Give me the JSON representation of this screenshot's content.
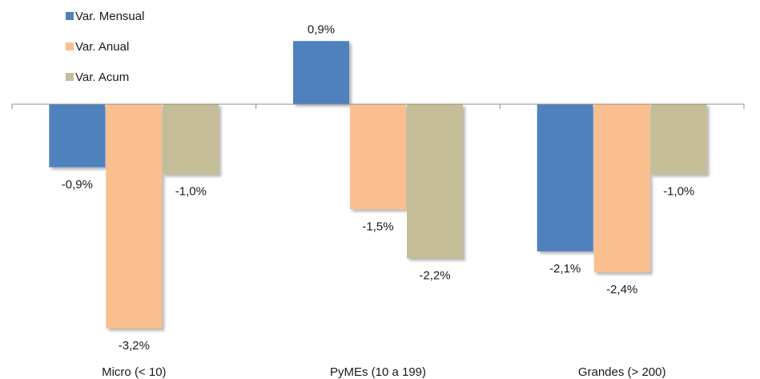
{
  "chart_data": {
    "type": "bar",
    "categories": [
      "Micro (< 10)",
      "PyMEs (10 a 199)",
      "Grandes (> 200)"
    ],
    "series": [
      {
        "name": "Var. Mensual",
        "color": "#4F81BD",
        "values": [
          -0.9,
          0.9,
          -2.1
        ],
        "labels": [
          "-0,9%",
          "0,9%",
          "-2,1%"
        ]
      },
      {
        "name": "Var. Anual",
        "color": "#FABF8F",
        "values": [
          -3.2,
          -1.5,
          -2.4
        ],
        "labels": [
          "-3,2%",
          "-1,5%",
          "-2,4%"
        ]
      },
      {
        "name": "Var. Acum",
        "color": "#C4BD97",
        "values": [
          -1.0,
          -2.2,
          -1.0
        ],
        "labels": [
          "-1,0%",
          "-2,2%",
          "-1,0%"
        ]
      }
    ],
    "value_format": "percent",
    "legend_position": "top-left",
    "grid": false,
    "title": "",
    "xlabel": "",
    "ylabel": ""
  }
}
